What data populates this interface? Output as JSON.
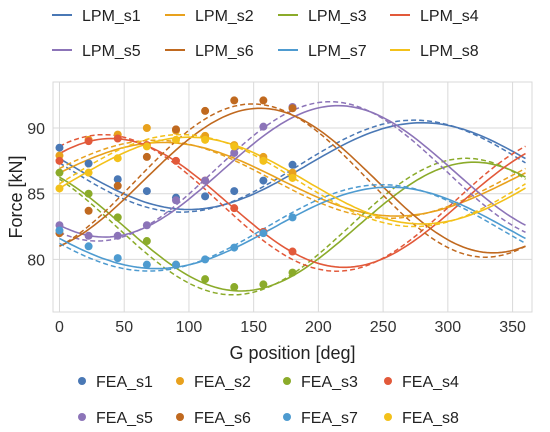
{
  "chart_data": {
    "type": "line",
    "xlabel": "G position [deg]",
    "ylabel": "Force [kN]",
    "xlim": [
      -5,
      365
    ],
    "ylim": [
      76,
      93.5
    ],
    "xticks": [
      0,
      50,
      100,
      150,
      200,
      250,
      300,
      350
    ],
    "yticks": [
      80,
      85,
      90
    ],
    "grid": true,
    "legend_position": "top and bottom",
    "series": [
      {
        "name": "LPM_s1",
        "color": "#4a78b5",
        "mean": 87.1,
        "amp": 3.3,
        "peak": 280
      },
      {
        "name": "LPM_s2",
        "color": "#e8a11d",
        "mean": 86.1,
        "amp": 2.8,
        "peak": 80
      },
      {
        "name": "LPM_s3",
        "color": "#8bab2a",
        "mean": 82.5,
        "amp": 4.9,
        "peak": 320
      },
      {
        "name": "LPM_s4",
        "color": "#e2593a",
        "mean": 84.3,
        "amp": 4.9,
        "peak": 40
      },
      {
        "name": "LPM_s5",
        "color": "#8c74b8",
        "mean": 86.7,
        "amp": 5.0,
        "peak": 215
      },
      {
        "name": "LPM_s6",
        "color": "#c0691f",
        "mean": 86.0,
        "amp": 5.5,
        "peak": 155
      },
      {
        "name": "LPM_s7",
        "color": "#4e9bd0",
        "mean": 82.4,
        "amp": 3.1,
        "peak": 255
      },
      {
        "name": "LPM_s8",
        "color": "#f3c11a",
        "mean": 86.0,
        "amp": 3.3,
        "peak": 100
      }
    ],
    "fea_series": [
      {
        "name": "FEA_s1",
        "color": "#4a78b5",
        "x": [
          0,
          22.5,
          45,
          67.5,
          90,
          112.5,
          135,
          157.5,
          180
        ],
        "y": [
          88.5,
          87.3,
          86.1,
          85.2,
          84.7,
          84.8,
          85.2,
          86.0,
          87.2
        ]
      },
      {
        "name": "FEA_s2",
        "color": "#e8a11d",
        "x": [
          0,
          22.5,
          45,
          67.5,
          90,
          112.5,
          135,
          157.5,
          180
        ],
        "y": [
          87.9,
          89.1,
          89.5,
          90.0,
          89.8,
          89.4,
          88.7,
          87.8,
          86.6
        ]
      },
      {
        "name": "FEA_s3",
        "color": "#8bab2a",
        "x": [
          0,
          22.5,
          45,
          67.5,
          90,
          112.5,
          135,
          157.5,
          180
        ],
        "y": [
          86.6,
          85.0,
          83.2,
          81.4,
          79.6,
          78.5,
          77.9,
          78.1,
          79.0
        ]
      },
      {
        "name": "FEA_s4",
        "color": "#e2593a",
        "x": [
          0,
          22.5,
          45,
          67.5,
          90,
          112.5,
          135,
          157.5,
          180
        ],
        "y": [
          87.5,
          89.0,
          89.2,
          88.7,
          87.5,
          86.0,
          83.9,
          82.1,
          80.6
        ]
      },
      {
        "name": "FEA_s5",
        "color": "#8c74b8",
        "x": [
          0,
          22.5,
          45,
          67.5,
          90,
          112.5,
          135,
          157.5,
          180
        ],
        "y": [
          82.6,
          81.8,
          81.8,
          82.6,
          84.5,
          86.0,
          88.1,
          90.1,
          91.6
        ]
      },
      {
        "name": "FEA_s6",
        "color": "#c0691f",
        "x": [
          0,
          22.5,
          45,
          67.5,
          90,
          112.5,
          135,
          157.5,
          180
        ],
        "y": [
          82.0,
          83.7,
          85.6,
          87.8,
          89.9,
          91.3,
          92.1,
          92.1,
          91.5
        ]
      },
      {
        "name": "FEA_s7",
        "color": "#4e9bd0",
        "x": [
          0,
          22.5,
          45,
          67.5,
          90,
          112.5,
          135,
          157.5,
          180
        ],
        "y": [
          82.2,
          81.0,
          80.1,
          79.6,
          79.6,
          80.0,
          80.9,
          82.0,
          83.2
        ]
      },
      {
        "name": "FEA_s8",
        "color": "#f3c11a",
        "x": [
          0,
          22.5,
          45,
          67.5,
          90,
          112.5,
          135,
          157.5,
          180
        ],
        "y": [
          85.4,
          86.6,
          87.7,
          88.6,
          89.1,
          89.1,
          88.6,
          87.5,
          86.2
        ]
      }
    ]
  }
}
